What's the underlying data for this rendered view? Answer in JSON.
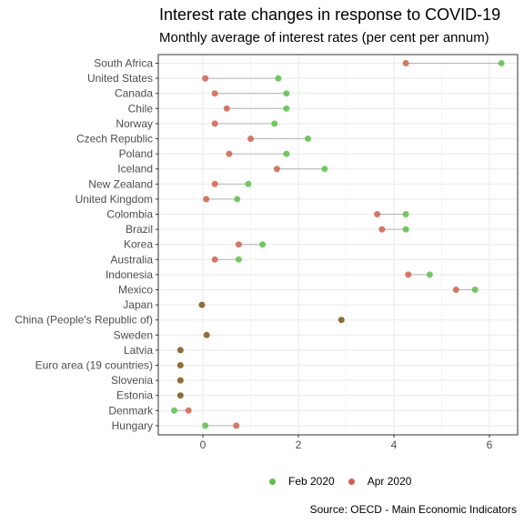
{
  "chart_data": {
    "type": "dumbbell",
    "title": "Interest rate changes in response to COVID-19",
    "subtitle": "Monthly average of interest rates (per cent per annum)",
    "caption": "Source: OECD - Main Economic Indicators",
    "x_ticks": [
      0,
      2,
      4,
      6
    ],
    "xlim": [
      -0.9,
      6.6
    ],
    "grid": true,
    "legend_position": "bottom",
    "colors": {
      "feb": "#5cc04a",
      "apr": "#d0614e",
      "overlap": "#8e6d3a",
      "segment": "#b3b3b3"
    },
    "series": [
      {
        "name": "Feb 2020",
        "key": "feb"
      },
      {
        "name": "Apr 2020",
        "key": "apr"
      }
    ],
    "categories": [
      "South Africa",
      "United States",
      "Canada",
      "Chile",
      "Norway",
      "Czech Republic",
      "Poland",
      "Iceland",
      "New Zealand",
      "United Kingdom",
      "Colombia",
      "Brazil",
      "Korea",
      "Australia",
      "Indonesia",
      "Mexico",
      "Japan",
      "China (People's Republic of)",
      "Sweden",
      "Latvia",
      "Euro area (19 countries)",
      "Slovenia",
      "Estonia",
      "Denmark",
      "Hungary"
    ],
    "feb": [
      6.25,
      1.58,
      1.75,
      1.75,
      1.5,
      2.2,
      1.75,
      2.55,
      0.95,
      0.72,
      4.25,
      4.25,
      1.25,
      0.75,
      4.75,
      5.7,
      -0.02,
      2.9,
      0.08,
      -0.47,
      -0.47,
      -0.47,
      -0.47,
      -0.6,
      0.05
    ],
    "apr": [
      4.25,
      0.05,
      0.25,
      0.5,
      0.25,
      1.0,
      0.55,
      1.55,
      0.25,
      0.07,
      3.65,
      3.75,
      0.75,
      0.25,
      4.3,
      5.3,
      -0.02,
      2.9,
      0.08,
      -0.47,
      -0.47,
      -0.47,
      -0.47,
      -0.3,
      0.7
    ]
  }
}
